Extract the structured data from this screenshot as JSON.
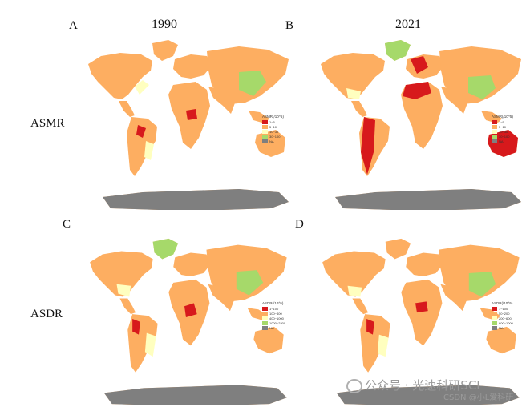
{
  "panels": [
    {
      "letter": "A",
      "year": "1990",
      "legend": {
        "title": "ASMR(/10^5)",
        "items": [
          "1~5",
          "5~10",
          "10~30",
          "30~100",
          "NA"
        ]
      }
    },
    {
      "letter": "B",
      "year": "2021",
      "legend": {
        "title": "ASMR(/10^5)",
        "items": [
          "1~5",
          "5~10",
          "10~30",
          "30~100",
          "NA"
        ]
      }
    },
    {
      "letter": "C",
      "year": "",
      "legend": {
        "title": "ASDR(/10^5)",
        "items": [
          "1~100",
          "100~400",
          "400~1000",
          "1000~2200",
          "NA"
        ]
      }
    },
    {
      "letter": "D",
      "year": "",
      "legend": {
        "title": "ASDR(/10^5)",
        "items": [
          "1~100",
          "50~200",
          "200~600",
          "600~1000",
          "NA"
        ]
      }
    }
  ],
  "rows": [
    "ASMR",
    "ASDR"
  ],
  "colors": {
    "red": "#d7191c",
    "orange": "#fdae61",
    "yellow": "#ffffbf",
    "green": "#a6d96a",
    "na": "#7f7f7f"
  },
  "watermark": {
    "main": "公众号 · 光速科研SCI",
    "csdn": "CSDN @小L爱科研"
  }
}
